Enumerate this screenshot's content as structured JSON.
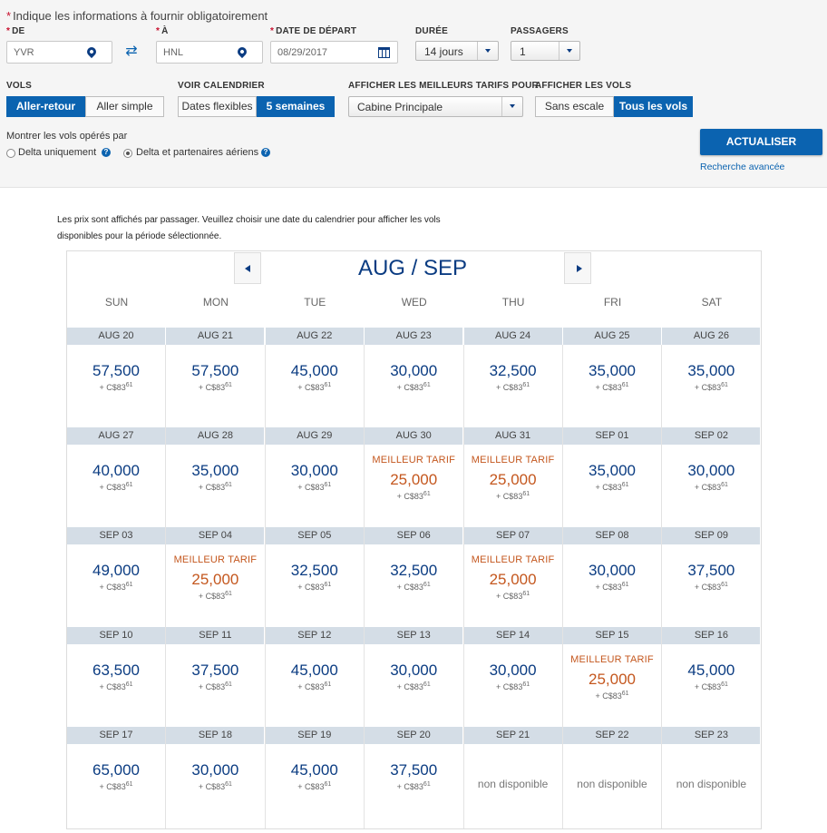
{
  "search": {
    "required_note": "Indique les informations à fournir obligatoirement",
    "from_label": "DE",
    "from_value": "YVR",
    "to_label": "À",
    "to_value": "HNL",
    "date_label": "DATE DE DÉPART",
    "date_value": "08/29/2017",
    "duration_label": "DURÉE",
    "duration_value": "14 jours",
    "passengers_label": "PASSAGERS",
    "passengers_value": "1"
  },
  "options": {
    "flights_label": "VOLS",
    "flights_roundtrip": "Aller-retour",
    "flights_oneway": "Aller simple",
    "calendar_label": "VOIR CALENDRIER",
    "calendar_flexible": "Dates flexibles",
    "calendar_weeks": "5 semaines",
    "best_fares_label": "AFFICHER LES MEILLEURS TARIFS POUR",
    "cabin_value": "Cabine Principale",
    "show_flights_label": "AFFICHER LES VOLS",
    "nonstop": "Sans escale",
    "all_flights": "Tous les vols",
    "operated_by_label": "Montrer les vols opérés par",
    "delta_only": "Delta uniquement",
    "delta_partners": "Delta et partenaires aériens",
    "update_button": "ACTUALISER",
    "advanced_search": "Recherche avancée"
  },
  "calendar": {
    "info_line1": "Les prix sont affichés par passager. Veuillez choisir une date du calendrier pour afficher les vols",
    "info_line2": "disponibles pour la période sélectionnée.",
    "month_title": "AUG / SEP",
    "days_of_week": [
      "SUN",
      "MON",
      "TUE",
      "WED",
      "THU",
      "FRI",
      "SAT"
    ],
    "best_label": "MEILLEUR TARIF",
    "fee": "+ C$83",
    "fee_cents": "61",
    "unavailable": "non disponible",
    "weeks": [
      [
        {
          "date": "AUG 20",
          "miles": "57,500",
          "best": false,
          "available": true
        },
        {
          "date": "AUG 21",
          "miles": "57,500",
          "best": false,
          "available": true
        },
        {
          "date": "AUG 22",
          "miles": "45,000",
          "best": false,
          "available": true
        },
        {
          "date": "AUG 23",
          "miles": "30,000",
          "best": false,
          "available": true
        },
        {
          "date": "AUG 24",
          "miles": "32,500",
          "best": false,
          "available": true
        },
        {
          "date": "AUG 25",
          "miles": "35,000",
          "best": false,
          "available": true
        },
        {
          "date": "AUG 26",
          "miles": "35,000",
          "best": false,
          "available": true
        }
      ],
      [
        {
          "date": "AUG 27",
          "miles": "40,000",
          "best": false,
          "available": true
        },
        {
          "date": "AUG 28",
          "miles": "35,000",
          "best": false,
          "available": true
        },
        {
          "date": "AUG 29",
          "miles": "30,000",
          "best": false,
          "available": true
        },
        {
          "date": "AUG 30",
          "miles": "25,000",
          "best": true,
          "available": true
        },
        {
          "date": "AUG 31",
          "miles": "25,000",
          "best": true,
          "available": true
        },
        {
          "date": "SEP 01",
          "miles": "35,000",
          "best": false,
          "available": true
        },
        {
          "date": "SEP 02",
          "miles": "30,000",
          "best": false,
          "available": true
        }
      ],
      [
        {
          "date": "SEP 03",
          "miles": "49,000",
          "best": false,
          "available": true
        },
        {
          "date": "SEP 04",
          "miles": "25,000",
          "best": true,
          "available": true
        },
        {
          "date": "SEP 05",
          "miles": "32,500",
          "best": false,
          "available": true
        },
        {
          "date": "SEP 06",
          "miles": "32,500",
          "best": false,
          "available": true
        },
        {
          "date": "SEP 07",
          "miles": "25,000",
          "best": true,
          "available": true
        },
        {
          "date": "SEP 08",
          "miles": "30,000",
          "best": false,
          "available": true
        },
        {
          "date": "SEP 09",
          "miles": "37,500",
          "best": false,
          "available": true
        }
      ],
      [
        {
          "date": "SEP 10",
          "miles": "63,500",
          "best": false,
          "available": true
        },
        {
          "date": "SEP 11",
          "miles": "37,500",
          "best": false,
          "available": true
        },
        {
          "date": "SEP 12",
          "miles": "45,000",
          "best": false,
          "available": true
        },
        {
          "date": "SEP 13",
          "miles": "30,000",
          "best": false,
          "available": true
        },
        {
          "date": "SEP 14",
          "miles": "30,000",
          "best": false,
          "available": true
        },
        {
          "date": "SEP 15",
          "miles": "25,000",
          "best": true,
          "available": true
        },
        {
          "date": "SEP 16",
          "miles": "45,000",
          "best": false,
          "available": true
        }
      ],
      [
        {
          "date": "SEP 17",
          "miles": "65,000",
          "best": false,
          "available": true
        },
        {
          "date": "SEP 18",
          "miles": "30,000",
          "best": false,
          "available": true
        },
        {
          "date": "SEP 19",
          "miles": "45,000",
          "best": false,
          "available": true
        },
        {
          "date": "SEP 20",
          "miles": "37,500",
          "best": false,
          "available": true
        },
        {
          "date": "SEP 21",
          "miles": "",
          "best": false,
          "available": false
        },
        {
          "date": "SEP 22",
          "miles": "",
          "best": false,
          "available": false
        },
        {
          "date": "SEP 23",
          "miles": "",
          "best": false,
          "available": false
        }
      ]
    ]
  },
  "colors": {
    "brand_blue": "#0b63b0",
    "navy": "#0b3c82",
    "best_fare": "#c4571e",
    "date_header_bg": "#d4dde6"
  },
  "icons": [
    "location-pin-icon",
    "swap-arrows-icon",
    "calendar-icon",
    "chevron-down-icon",
    "help-icon",
    "arrow-left-icon",
    "arrow-right-icon"
  ]
}
